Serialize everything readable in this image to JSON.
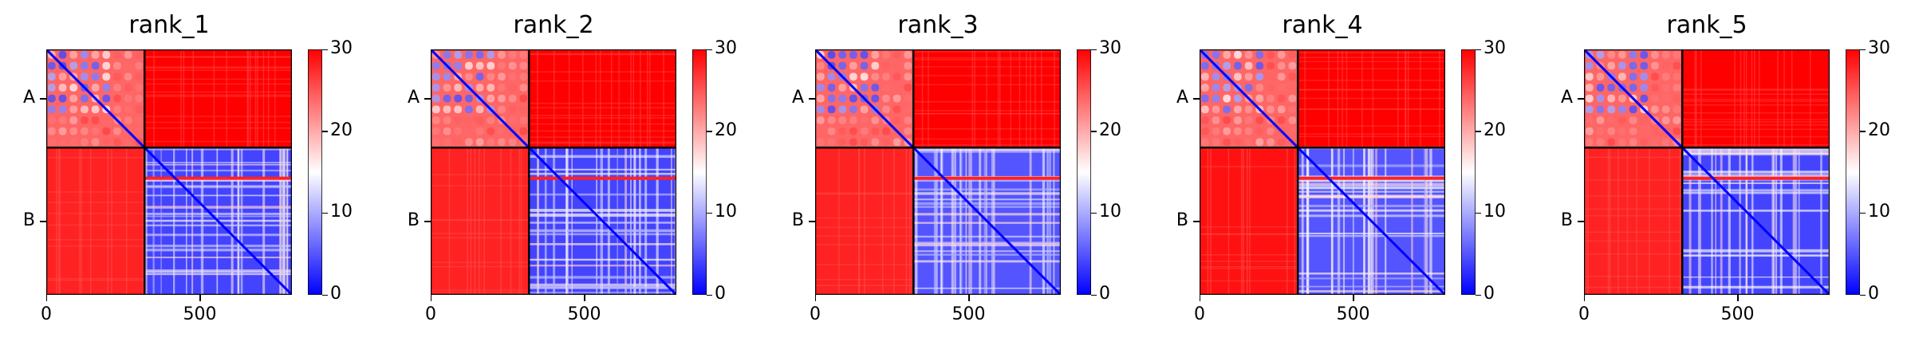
{
  "chart_data": [
    {
      "type": "heatmap",
      "title": "rank_1",
      "xlim": [
        0,
        800
      ],
      "xticks": [
        0,
        500
      ],
      "yticks_labels": [
        "A",
        "B"
      ],
      "chains": [
        {
          "name": "A",
          "start": 0,
          "end": 320
        },
        {
          "name": "B",
          "start": 320,
          "end": 800
        }
      ],
      "colorbar": {
        "min": 0,
        "max": 30,
        "ticks": [
          0,
          10,
          20,
          30
        ],
        "colormap": "bwr"
      },
      "blocks": {
        "A-A": "mixed",
        "A-B": 30,
        "B-A": 28,
        "B-B": 4
      },
      "red_stripe_position": 420
    },
    {
      "type": "heatmap",
      "title": "rank_2",
      "xlim": [
        0,
        800
      ],
      "xticks": [
        0,
        500
      ],
      "yticks_labels": [
        "A",
        "B"
      ],
      "chains": [
        {
          "name": "A",
          "start": 0,
          "end": 320
        },
        {
          "name": "B",
          "start": 320,
          "end": 800
        }
      ],
      "colorbar": {
        "min": 0,
        "max": 30,
        "ticks": [
          0,
          10,
          20,
          30
        ],
        "colormap": "bwr"
      },
      "blocks": {
        "A-A": "mixed",
        "A-B": 30,
        "B-A": 28,
        "B-B": 4
      },
      "red_stripe_position": 420
    },
    {
      "type": "heatmap",
      "title": "rank_3",
      "xlim": [
        0,
        800
      ],
      "xticks": [
        0,
        500
      ],
      "yticks_labels": [
        "A",
        "B"
      ],
      "chains": [
        {
          "name": "A",
          "start": 0,
          "end": 320
        },
        {
          "name": "B",
          "start": 320,
          "end": 800
        }
      ],
      "colorbar": {
        "min": 0,
        "max": 30,
        "ticks": [
          0,
          10,
          20,
          30
        ],
        "colormap": "bwr"
      },
      "blocks": {
        "A-A": "mixed",
        "A-B": 30,
        "B-A": 28,
        "B-B": 5
      },
      "red_stripe_position": 420
    },
    {
      "type": "heatmap",
      "title": "rank_4",
      "xlim": [
        0,
        800
      ],
      "xticks": [
        0,
        500
      ],
      "yticks_labels": [
        "A",
        "B"
      ],
      "chains": [
        {
          "name": "A",
          "start": 0,
          "end": 320
        },
        {
          "name": "B",
          "start": 320,
          "end": 800
        }
      ],
      "colorbar": {
        "min": 0,
        "max": 30,
        "ticks": [
          0,
          10,
          20,
          30
        ],
        "colormap": "bwr"
      },
      "blocks": {
        "A-A": "mixed",
        "A-B": 30,
        "B-A": 29,
        "B-B": 5
      },
      "red_stripe_position": 420
    },
    {
      "type": "heatmap",
      "title": "rank_5",
      "xlim": [
        0,
        800
      ],
      "xticks": [
        0,
        500
      ],
      "yticks_labels": [
        "A",
        "B"
      ],
      "chains": [
        {
          "name": "A",
          "start": 0,
          "end": 320
        },
        {
          "name": "B",
          "start": 320,
          "end": 800
        }
      ],
      "colorbar": {
        "min": 0,
        "max": 30,
        "ticks": [
          0,
          10,
          20,
          30
        ],
        "colormap": "bwr"
      },
      "blocks": {
        "A-A": "mixed",
        "A-B": 30,
        "B-A": 28,
        "B-B": 4
      },
      "red_stripe_position": 420
    }
  ],
  "colors": {
    "low": "#0000ff",
    "mid": "#ffffff",
    "high": "#ff0000",
    "divider": "#000000"
  }
}
